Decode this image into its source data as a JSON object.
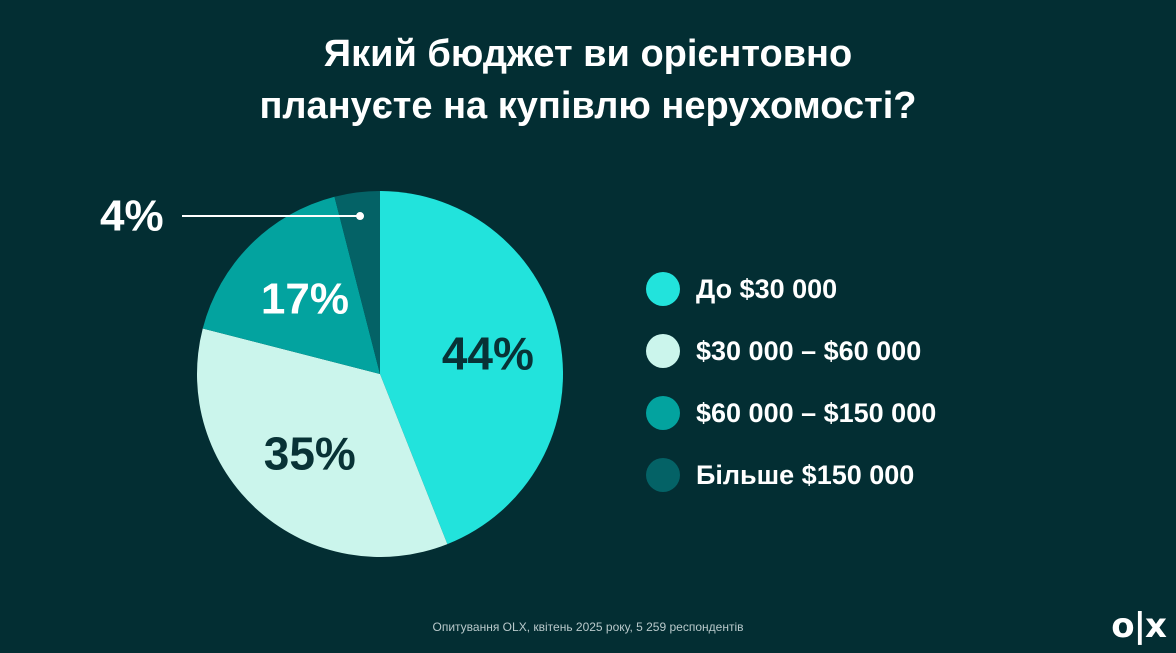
{
  "title_lines": [
    "Який бюджет ви орієнтовно",
    "плануєте на купівлю нерухомості?"
  ],
  "chart_data": {
    "type": "pie",
    "title": "Який бюджет ви орієнтовно плануєте на купівлю нерухомості?",
    "slices": [
      {
        "label": "До $30 000",
        "value": 44,
        "display": "44%",
        "color": "#22e3dc",
        "text_color": "#083236"
      },
      {
        "label": "$30 000 – $60 000",
        "value": 35,
        "display": "35%",
        "color": "#cbf5ec",
        "text_color": "#083236"
      },
      {
        "label": "$60 000 – $150 000",
        "value": 17,
        "display": "17%",
        "color": "#03a39f",
        "text_color": "#ffffff"
      },
      {
        "label": "Більше $150 000",
        "value": 4,
        "display": "4%",
        "color": "#046266",
        "text_color": "#ffffff"
      }
    ],
    "legend_position": "right"
  },
  "footnote": "Опитування OLX, квітень 2025 року, 5 259 респондентів",
  "logo_text": "olx"
}
